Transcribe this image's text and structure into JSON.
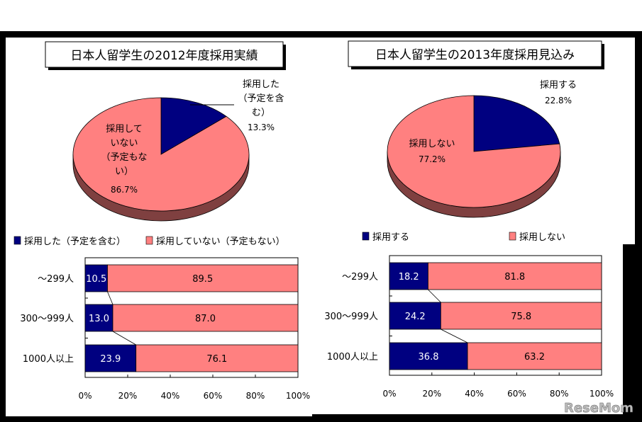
{
  "colors": {
    "navy": "#000080",
    "salmon": "#FF8080",
    "shadow": "#7F4040",
    "frame": "#000000"
  },
  "watermark": "ReseMom",
  "chart_data": [
    {
      "type": "pie",
      "title": "日本人留学生の2012年度採用実績",
      "slices": [
        {
          "label_lines": [
            "採用した",
            "（予定を含",
            "む）"
          ],
          "pct_label": "13.3%",
          "value": 13.3
        },
        {
          "label_lines": [
            "採用して",
            "いない",
            "（予定もな",
            "い）"
          ],
          "pct_label": "86.7%",
          "value": 86.7
        }
      ]
    },
    {
      "type": "pie",
      "title": "日本人留学生の2013年度採用見込み",
      "slices": [
        {
          "label_lines": [
            "採用する"
          ],
          "pct_label": "22.8%",
          "value": 22.8
        },
        {
          "label_lines": [
            "採用しない"
          ],
          "pct_label": "77.2%",
          "value": 77.2
        }
      ]
    },
    {
      "type": "bar",
      "orientation": "horizontal-stacked-100",
      "legend": [
        "採用した（予定を含む）",
        "採用していない（予定もない）"
      ],
      "legend_position": "top",
      "categories": [
        "～299人",
        "300～999人",
        "1000人以上"
      ],
      "series": [
        {
          "name": "採用した（予定を含む）",
          "values": [
            10.5,
            13.0,
            23.9
          ],
          "labels": [
            "10.5",
            "13.0",
            "23.9"
          ]
        },
        {
          "name": "採用していない（予定もない）",
          "values": [
            89.5,
            87.0,
            76.1
          ],
          "labels": [
            "89.5",
            "87.0",
            "76.1"
          ]
        }
      ],
      "xlim": [
        0,
        100
      ],
      "xticks": [
        "0%",
        "20%",
        "40%",
        "60%",
        "80%",
        "100%"
      ]
    },
    {
      "type": "bar",
      "orientation": "horizontal-stacked-100",
      "legend": [
        "採用する",
        "採用しない"
      ],
      "legend_position": "top",
      "categories": [
        "～299人",
        "300～999人",
        "1000人以上"
      ],
      "series": [
        {
          "name": "採用する",
          "values": [
            18.2,
            24.2,
            36.8
          ],
          "labels": [
            "18.2",
            "24.2",
            "36.8"
          ]
        },
        {
          "name": "採用しない",
          "values": [
            81.8,
            75.8,
            63.2
          ],
          "labels": [
            "81.8",
            "75.8",
            "63.2"
          ]
        }
      ],
      "xlim": [
        0,
        100
      ],
      "xticks": [
        "0%",
        "20%",
        "40%",
        "60%",
        "80%",
        "100%"
      ]
    }
  ]
}
